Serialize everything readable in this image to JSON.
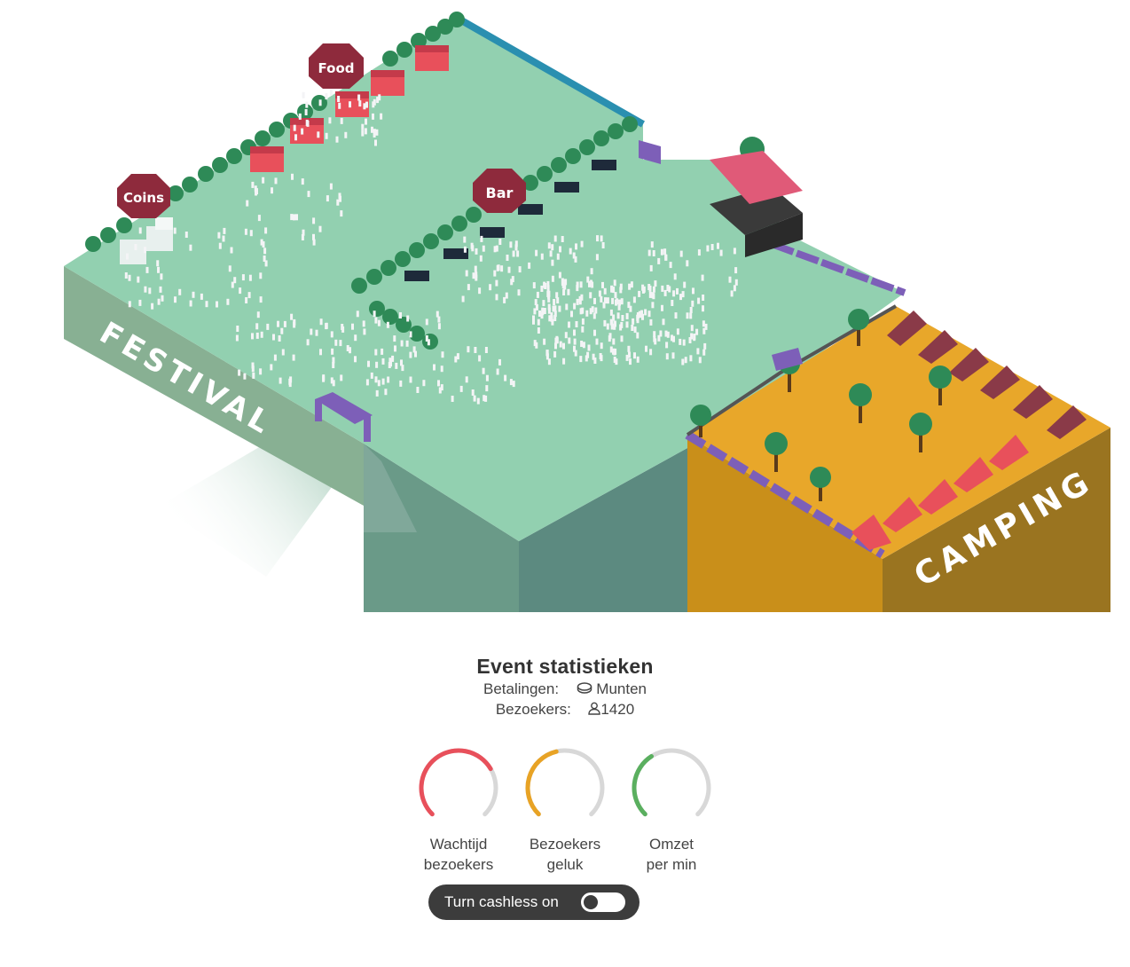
{
  "scene": {
    "zones": {
      "festival": "FESTIVAL",
      "camping": "CAMPING"
    },
    "signs": {
      "coins": "Coins",
      "food": "Food",
      "bar": "Bar"
    }
  },
  "stats": {
    "title": "Event statistieken",
    "payments_label": "Betalingen:",
    "payments_icon": "coin-icon",
    "payments_value": "Munten",
    "visitors_label": "Bezoekers:",
    "visitors_icon": "person-icon",
    "visitors_value": "1420"
  },
  "gauges": [
    {
      "name": "wait-time",
      "line1": "Wachtijd",
      "line2": "bezoekers",
      "color": "#e8505b",
      "level": 0.72
    },
    {
      "name": "happiness",
      "line1": "Bezoekers",
      "line2": "geluk",
      "color": "#e8a325",
      "level": 0.45
    },
    {
      "name": "revenue",
      "line1": "Omzet",
      "line2": "per min",
      "color": "#5aaf5f",
      "level": 0.38
    }
  ],
  "cashless_toggle": {
    "label": "Turn cashless on",
    "state": "off"
  },
  "colors": {
    "grass_top": "#92d0b0",
    "grass_left": "#88b093",
    "grass_front": "#5c8a80",
    "camping_top": "#e8a72a",
    "camping_front": "#c98f1a",
    "camping_side": "#9a7420",
    "tent_red": "#e8505b",
    "tent_dark": "#8a3a48",
    "sign": "#8e2a3c",
    "gate": "#7d5fb8",
    "tree": "#2e8a57"
  }
}
